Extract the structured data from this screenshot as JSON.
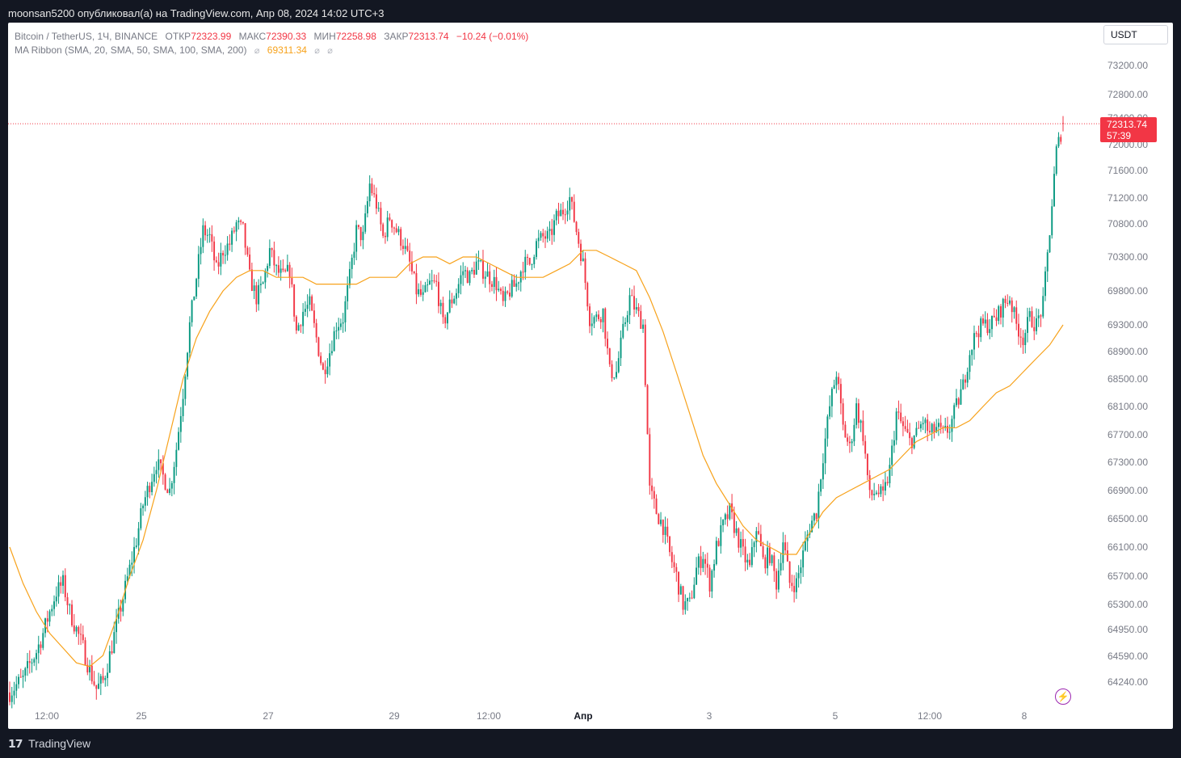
{
  "header": {
    "publisher_line": "moonsan5200 опубликовал(а) на TradingView.com, Апр 08, 2024 14:02 UTC+3"
  },
  "legend": {
    "symbol_line": "Bitcoin / TetherUS, 1Ч, BINANCE",
    "open_label": "ОТКР",
    "open_value": "72323.99",
    "high_label": "МАКС",
    "high_value": "72390.33",
    "low_label": "МИН",
    "low_value": "72258.98",
    "close_label": "ЗАКР",
    "close_value": "72313.74",
    "change": "−10.24 (−0.01%)",
    "ma_line": "MA Ribbon (SMA, 20, SMA, 50, SMA, 100, SMA, 200)",
    "ma_value": "69311.34",
    "eye_glyph": "⌀"
  },
  "currency": "USDT",
  "last_price": {
    "value": "72313.74",
    "countdown": "57:39"
  },
  "footer": {
    "brand": "TradingView",
    "logo_glyph": "𝟭𝟳"
  },
  "colors": {
    "up": "#089981",
    "down": "#f23645",
    "ma": "#f7a21b",
    "axis_text": "#787b86",
    "last_price_line": "#f23645"
  },
  "chart_data": {
    "type": "candlestick",
    "symbol": "Bitcoin / TetherUS",
    "interval": "1Ч",
    "exchange": "BINANCE",
    "y_ticks": [
      73200,
      72800,
      72400,
      72000,
      71600,
      71200,
      70800,
      70300,
      69800,
      69300,
      68900,
      68500,
      68100,
      67700,
      67300,
      66900,
      66500,
      66100,
      65700,
      65300,
      64950,
      64590,
      64240
    ],
    "y_tick_labels": [
      "73200.00",
      "72800.00",
      "72400.00",
      "72000.00",
      "71600.00",
      "71200.00",
      "70800.00",
      "70300.00",
      "69800.00",
      "69300.00",
      "68900.00",
      "68500.00",
      "68100.00",
      "67700.00",
      "67300.00",
      "66900.00",
      "66500.00",
      "66100.00",
      "65700.00",
      "65300.00",
      "64950.00",
      "64590.00",
      "64240.00"
    ],
    "x_tick_labels": [
      "12:00",
      "25",
      "27",
      "29",
      "12:00",
      "Апр",
      "3",
      "5",
      "12:00",
      "8"
    ],
    "x_tick_bold": [
      false,
      false,
      false,
      false,
      false,
      true,
      false,
      false,
      false,
      false
    ],
    "close_path": [
      [
        0,
        64100
      ],
      [
        3,
        64200
      ],
      [
        6,
        64280
      ],
      [
        9,
        64480
      ],
      [
        12,
        64650
      ],
      [
        15,
        64900
      ],
      [
        18,
        65200
      ],
      [
        21,
        65480
      ],
      [
        24,
        65600
      ],
      [
        27,
        65200
      ],
      [
        30,
        64950
      ],
      [
        33,
        64700
      ],
      [
        36,
        64400
      ],
      [
        39,
        64150
      ],
      [
        42,
        64250
      ],
      [
        45,
        64600
      ],
      [
        48,
        65000
      ],
      [
        51,
        65400
      ],
      [
        54,
        65800
      ],
      [
        57,
        66200
      ],
      [
        60,
        66700
      ],
      [
        63,
        67000
      ],
      [
        66,
        67300
      ],
      [
        69,
        67100
      ],
      [
        72,
        66900
      ],
      [
        75,
        67500
      ],
      [
        78,
        68300
      ],
      [
        81,
        69300
      ],
      [
        84,
        70000
      ],
      [
        87,
        70700
      ],
      [
        90,
        70600
      ],
      [
        93,
        70100
      ],
      [
        96,
        70400
      ],
      [
        99,
        70500
      ],
      [
        102,
        70800
      ],
      [
        105,
        70700
      ],
      [
        108,
        70000
      ],
      [
        111,
        69700
      ],
      [
        114,
        69900
      ],
      [
        117,
        70400
      ],
      [
        120,
        70100
      ],
      [
        123,
        70000
      ],
      [
        126,
        70100
      ],
      [
        129,
        69200
      ],
      [
        132,
        69500
      ],
      [
        135,
        69600
      ],
      [
        138,
        69100
      ],
      [
        141,
        68600
      ],
      [
        144,
        68900
      ],
      [
        147,
        69300
      ],
      [
        150,
        69400
      ],
      [
        153,
        70000
      ],
      [
        156,
        70700
      ],
      [
        159,
        70600
      ],
      [
        162,
        71400
      ],
      [
        165,
        71100
      ],
      [
        168,
        70600
      ],
      [
        171,
        70900
      ],
      [
        174,
        70700
      ],
      [
        177,
        70500
      ],
      [
        180,
        70200
      ],
      [
        183,
        69800
      ],
      [
        186,
        69700
      ],
      [
        189,
        69900
      ],
      [
        192,
        69900
      ],
      [
        195,
        69300
      ],
      [
        198,
        69600
      ],
      [
        201,
        69800
      ],
      [
        204,
        70100
      ],
      [
        207,
        70000
      ],
      [
        210,
        70200
      ],
      [
        213,
        70100
      ],
      [
        216,
        70000
      ],
      [
        219,
        69900
      ],
      [
        222,
        69600
      ],
      [
        225,
        69800
      ],
      [
        228,
        69900
      ],
      [
        231,
        70200
      ],
      [
        234,
        70200
      ],
      [
        237,
        70500
      ],
      [
        240,
        70600
      ],
      [
        243,
        70600
      ],
      [
        246,
        70900
      ],
      [
        249,
        71000
      ],
      [
        252,
        71200
      ],
      [
        255,
        70700
      ],
      [
        258,
        70200
      ],
      [
        261,
        69400
      ],
      [
        264,
        69400
      ],
      [
        267,
        69500
      ],
      [
        270,
        68600
      ],
      [
        273,
        68600
      ],
      [
        276,
        69200
      ],
      [
        279,
        69700
      ],
      [
        282,
        69500
      ],
      [
        285,
        69300
      ],
      [
        288,
        66900
      ],
      [
        291,
        66600
      ],
      [
        294,
        66400
      ],
      [
        297,
        66000
      ],
      [
        300,
        65700
      ],
      [
        303,
        65300
      ],
      [
        306,
        65300
      ],
      [
        309,
        65800
      ],
      [
        312,
        66000
      ],
      [
        315,
        65600
      ],
      [
        318,
        66100
      ],
      [
        321,
        66400
      ],
      [
        324,
        66600
      ],
      [
        327,
        66300
      ],
      [
        330,
        66000
      ],
      [
        333,
        65800
      ],
      [
        336,
        66400
      ],
      [
        339,
        65900
      ],
      [
        342,
        66000
      ],
      [
        345,
        65600
      ],
      [
        348,
        66200
      ],
      [
        351,
        65600
      ],
      [
        354,
        65600
      ],
      [
        357,
        66000
      ],
      [
        360,
        66400
      ],
      [
        363,
        66600
      ],
      [
        366,
        67400
      ],
      [
        369,
        68100
      ],
      [
        372,
        68600
      ],
      [
        375,
        67800
      ],
      [
        378,
        67500
      ],
      [
        381,
        68100
      ],
      [
        384,
        67700
      ],
      [
        387,
        66800
      ],
      [
        390,
        66900
      ],
      [
        393,
        66800
      ],
      [
        396,
        67200
      ],
      [
        399,
        68000
      ],
      [
        402,
        67800
      ],
      [
        405,
        67600
      ],
      [
        408,
        67700
      ],
      [
        411,
        67900
      ],
      [
        414,
        67700
      ],
      [
        417,
        67800
      ],
      [
        420,
        67700
      ],
      [
        423,
        67800
      ],
      [
        426,
        68100
      ],
      [
        429,
        68400
      ],
      [
        432,
        68900
      ],
      [
        435,
        69200
      ],
      [
        438,
        69300
      ],
      [
        441,
        69300
      ],
      [
        444,
        69400
      ],
      [
        447,
        69600
      ],
      [
        450,
        69700
      ],
      [
        453,
        69300
      ],
      [
        456,
        69100
      ],
      [
        459,
        69400
      ],
      [
        462,
        69300
      ],
      [
        465,
        69600
      ],
      [
        468,
        70700
      ],
      [
        471,
        71900
      ],
      [
        474,
        72300
      ]
    ],
    "ma": [
      [
        0,
        66100
      ],
      [
        6,
        65600
      ],
      [
        12,
        65200
      ],
      [
        18,
        64900
      ],
      [
        24,
        64700
      ],
      [
        30,
        64500
      ],
      [
        36,
        64450
      ],
      [
        42,
        64600
      ],
      [
        48,
        65100
      ],
      [
        54,
        65700
      ],
      [
        60,
        66200
      ],
      [
        66,
        66900
      ],
      [
        72,
        67700
      ],
      [
        78,
        68500
      ],
      [
        84,
        69100
      ],
      [
        90,
        69500
      ],
      [
        96,
        69800
      ],
      [
        102,
        70000
      ],
      [
        108,
        70100
      ],
      [
        114,
        70100
      ],
      [
        120,
        70000
      ],
      [
        126,
        70000
      ],
      [
        132,
        70000
      ],
      [
        138,
        69900
      ],
      [
        144,
        69900
      ],
      [
        150,
        69900
      ],
      [
        156,
        69900
      ],
      [
        162,
        70000
      ],
      [
        168,
        70000
      ],
      [
        174,
        70000
      ],
      [
        180,
        70200
      ],
      [
        186,
        70300
      ],
      [
        192,
        70300
      ],
      [
        198,
        70200
      ],
      [
        204,
        70300
      ],
      [
        210,
        70300
      ],
      [
        216,
        70200
      ],
      [
        222,
        70100
      ],
      [
        228,
        70000
      ],
      [
        234,
        70000
      ],
      [
        240,
        70000
      ],
      [
        246,
        70100
      ],
      [
        252,
        70200
      ],
      [
        258,
        70400
      ],
      [
        264,
        70400
      ],
      [
        270,
        70300
      ],
      [
        276,
        70200
      ],
      [
        282,
        70100
      ],
      [
        288,
        69700
      ],
      [
        294,
        69200
      ],
      [
        300,
        68600
      ],
      [
        306,
        68000
      ],
      [
        312,
        67400
      ],
      [
        318,
        67000
      ],
      [
        324,
        66700
      ],
      [
        330,
        66400
      ],
      [
        336,
        66200
      ],
      [
        342,
        66100
      ],
      [
        348,
        66000
      ],
      [
        354,
        66000
      ],
      [
        360,
        66300
      ],
      [
        366,
        66600
      ],
      [
        372,
        66800
      ],
      [
        378,
        66900
      ],
      [
        384,
        67000
      ],
      [
        390,
        67100
      ],
      [
        396,
        67200
      ],
      [
        402,
        67400
      ],
      [
        408,
        67600
      ],
      [
        414,
        67700
      ],
      [
        420,
        67800
      ],
      [
        426,
        67800
      ],
      [
        432,
        67900
      ],
      [
        438,
        68100
      ],
      [
        444,
        68300
      ],
      [
        450,
        68400
      ],
      [
        456,
        68600
      ],
      [
        462,
        68800
      ],
      [
        468,
        69000
      ],
      [
        474,
        69300
      ]
    ],
    "candle_count": 475,
    "last_close": 72313.74,
    "ylim": [
      64000,
      73600
    ],
    "grid": false
  }
}
